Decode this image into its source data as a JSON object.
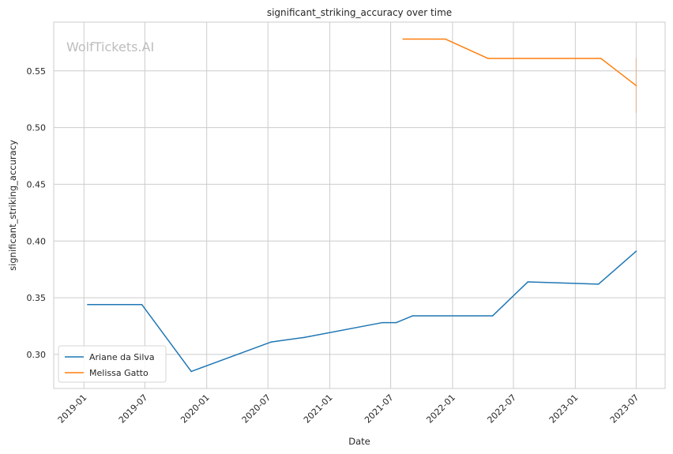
{
  "chart_data": {
    "type": "line",
    "title": "significant_striking_accuracy over time",
    "xlabel": "Date",
    "ylabel": "significant_striking_accuracy",
    "watermark": "WolfTickets.AI",
    "x_ticks": [
      "2019-01",
      "2019-07",
      "2020-01",
      "2020-07",
      "2021-01",
      "2021-07",
      "2022-01",
      "2022-07",
      "2023-01",
      "2023-07"
    ],
    "y_ticks": [
      "0.30",
      "0.35",
      "0.40",
      "0.45",
      "0.50",
      "0.55"
    ],
    "ylim": [
      0.27,
      0.593
    ],
    "xlim": [
      "2018-10-03",
      "2023-09-25"
    ],
    "grid": true,
    "legend_position": "lower-left",
    "series": [
      {
        "name": "Ariane da Silva",
        "color": "#1f77b4",
        "points": [
          {
            "x": "2019-01-12",
            "y": 0.344
          },
          {
            "x": "2019-06-22",
            "y": 0.344
          },
          {
            "x": "2019-11-16",
            "y": 0.285
          },
          {
            "x": "2020-07-11",
            "y": 0.311
          },
          {
            "x": "2020-10-17",
            "y": 0.315
          },
          {
            "x": "2021-06-05",
            "y": 0.328
          },
          {
            "x": "2021-07-17",
            "y": 0.328
          },
          {
            "x": "2021-09-04",
            "y": 0.334
          },
          {
            "x": "2022-04-30",
            "y": 0.334
          },
          {
            "x": "2022-08-13",
            "y": 0.364
          },
          {
            "x": "2023-03-11",
            "y": 0.362
          },
          {
            "x": "2023-07-01",
            "y": 0.391
          }
        ]
      },
      {
        "name": "Melissa Gatto",
        "color": "#ff7f0e",
        "points": [
          {
            "x": "2021-08-07",
            "y": 0.578
          },
          {
            "x": "2021-12-11",
            "y": 0.578
          },
          {
            "x": "2022-04-16",
            "y": 0.561
          },
          {
            "x": "2023-03-18",
            "y": 0.561
          },
          {
            "x": "2023-07-01",
            "y": 0.537
          }
        ],
        "error_band": {
          "x": "2023-07-01",
          "low": 0.513,
          "high": 0.561
        }
      }
    ]
  }
}
